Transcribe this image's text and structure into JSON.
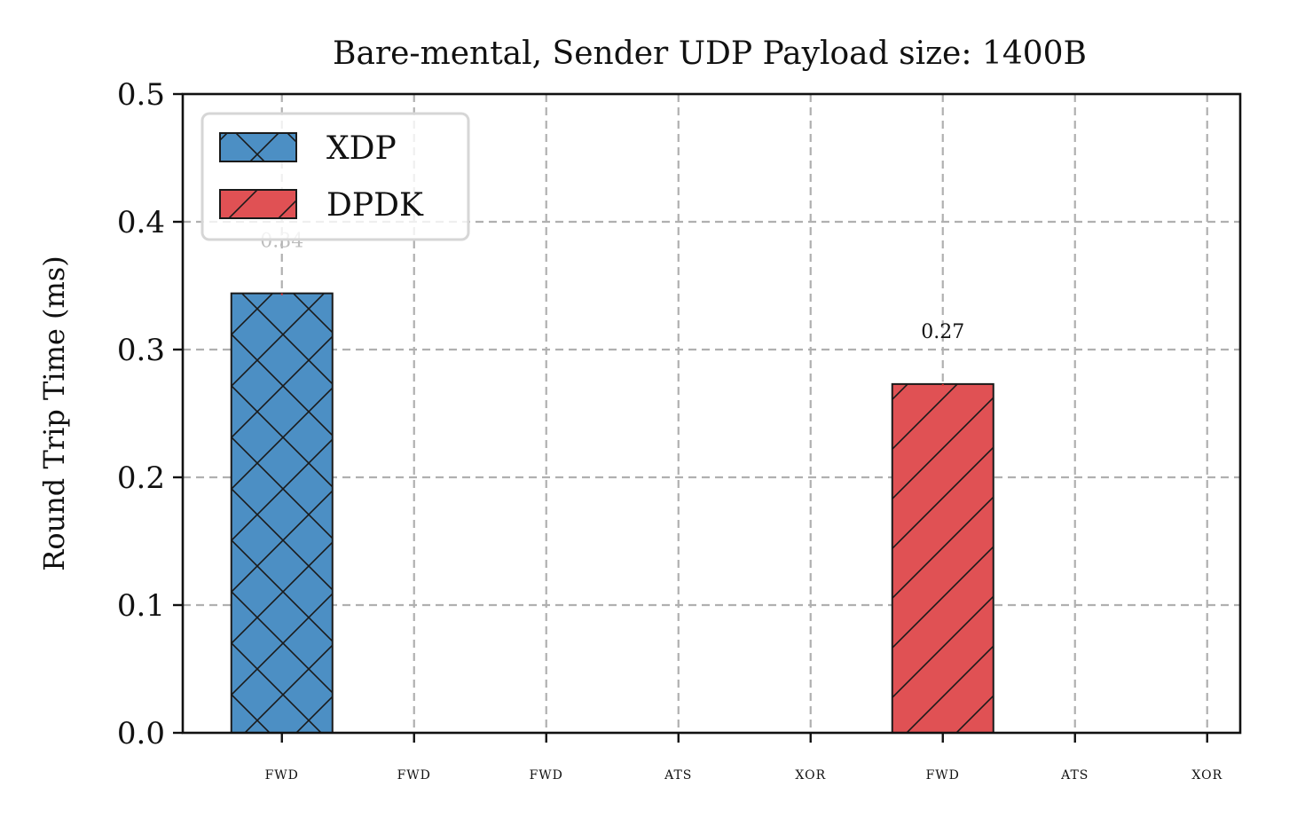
{
  "chart_data": {
    "type": "bar",
    "title": "Bare-mental, Sender UDP Payload size: 1400B",
    "xlabel": "",
    "ylabel": "Round Trip Time (ms)",
    "ylim": [
      0,
      0.5
    ],
    "yticks": [
      "0.0",
      "0.1",
      "0.2",
      "0.3",
      "0.4",
      "0.5"
    ],
    "ytick_values": [
      0,
      0.1,
      0.2,
      0.3,
      0.4,
      0.5
    ],
    "categories": [
      "FWD",
      "FWD",
      "FWD",
      "ATS",
      "XOR",
      "FWD",
      "ATS",
      "XOR"
    ],
    "grid": true,
    "legend_position": "top-left",
    "series": [
      {
        "name": "XDP",
        "color": "#4c8fc4",
        "hatch": "x",
        "values": [
          0.344,
          0,
          0,
          0,
          0,
          0,
          0,
          0
        ],
        "labels": [
          "0.34",
          "",
          "",
          "",
          "",
          "",
          "",
          ""
        ],
        "label_color": "#bdbdbd"
      },
      {
        "name": "DPDK",
        "color": "#e05154",
        "hatch": "/",
        "values": [
          0,
          0,
          0,
          0,
          0,
          0.273,
          0,
          0
        ],
        "labels": [
          "",
          "",
          "",
          "",
          "",
          "0.27",
          "",
          ""
        ],
        "label_color": "#111111"
      }
    ]
  }
}
